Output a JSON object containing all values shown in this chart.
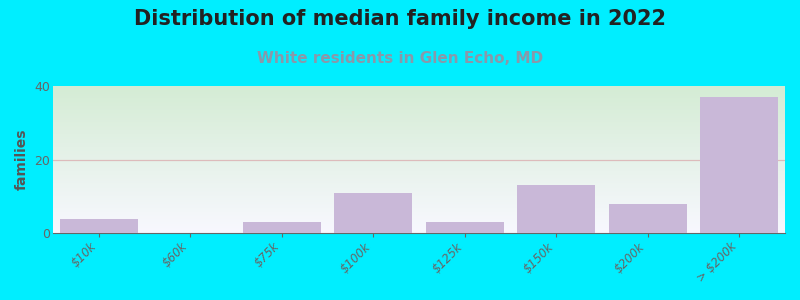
{
  "title": "Distribution of median family income in 2022",
  "subtitle": "White residents in Glen Echo, MD",
  "ylabel": "families",
  "categories": [
    "$10k",
    "$60k",
    "$75k",
    "$100k",
    "$125k",
    "$150k",
    "$200k",
    "> $200k"
  ],
  "values": [
    4,
    0,
    3,
    11,
    3,
    13,
    8,
    37
  ],
  "bar_color": "#c9b8d8",
  "background_outer": "#00eeff",
  "background_inner_top_color": "#f8f8ff",
  "background_inner_bottom_color": "#d4ecd4",
  "grid_color": "#ddbbbb",
  "title_fontsize": 15,
  "title_color": "#222222",
  "subtitle_fontsize": 11,
  "subtitle_color": "#8899aa",
  "ylabel_color": "#555555",
  "tick_color": "#666666",
  "ylim": [
    0,
    40
  ],
  "yticks": [
    0,
    20,
    40
  ]
}
